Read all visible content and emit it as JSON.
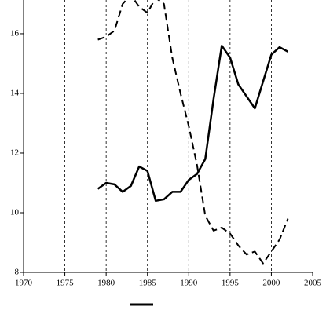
{
  "chart_data": {
    "type": "line",
    "x": [
      1979,
      1980,
      1981,
      1982,
      1983,
      1984,
      1985,
      1986,
      1987,
      1988,
      1989,
      1990,
      1991,
      1992,
      1993,
      1994,
      1995,
      1996,
      1997,
      1998,
      1999,
      2000,
      2001,
      2002
    ],
    "series": [
      {
        "color": "#000000",
        "dash": false,
        "values": [
          10.8,
          11.0,
          10.95,
          10.7,
          10.9,
          11.55,
          11.4,
          10.4,
          10.45,
          10.7,
          10.7,
          11.1,
          11.3,
          11.8,
          13.8,
          15.6,
          15.2,
          14.3,
          13.9,
          13.5,
          14.4,
          15.3,
          15.55,
          15.4
        ]
      },
      {
        "color": "#000000",
        "dash": true,
        "values": [
          15.8,
          15.9,
          16.1,
          17.0,
          17.3,
          16.9,
          16.7,
          17.2,
          17.0,
          15.2,
          14.0,
          12.9,
          11.6,
          9.9,
          9.4,
          9.5,
          9.3,
          8.9,
          8.6,
          8.7,
          8.3,
          8.7,
          9.1,
          9.8
        ]
      }
    ],
    "xlim": [
      1970,
      2005
    ],
    "xticks": [
      1970,
      1975,
      1980,
      1985,
      1990,
      1995,
      2000,
      2005
    ],
    "ylim": [
      8,
      17.13
    ],
    "yticks": [
      8,
      10,
      12,
      14,
      16
    ],
    "grid": true
  }
}
